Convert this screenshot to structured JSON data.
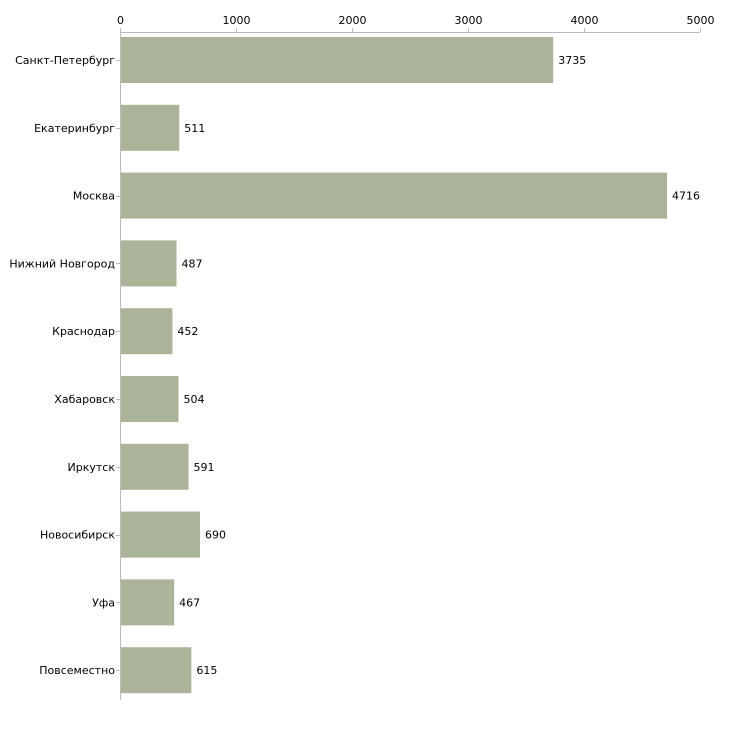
{
  "chart_data": {
    "type": "bar",
    "orientation": "horizontal",
    "title": "",
    "xlabel": "",
    "ylabel": "",
    "xlim": [
      0,
      5000
    ],
    "ticks": [
      0,
      1000,
      2000,
      3000,
      4000,
      5000
    ],
    "tick_labels": [
      "0",
      "1000",
      "2000",
      "3000",
      "4000",
      "5000"
    ],
    "axis_position": "top",
    "grid": false,
    "legend": "none",
    "categories": [
      "Санкт-Петербург",
      "Екатеринбург",
      "Москва",
      "Нижний Новгород",
      "Краснодар",
      "Хабаровск",
      "Иркутск",
      "Новосибирск",
      "Уфа",
      "Повсеместно"
    ],
    "values": [
      3735,
      511,
      4716,
      487,
      452,
      504,
      591,
      690,
      467,
      615
    ],
    "value_labels": [
      "3735",
      "511",
      "4716",
      "487",
      "452",
      "504",
      "591",
      "690",
      "467",
      "615"
    ],
    "bar_color": "#abb398",
    "axis_color": "#bbbbbb"
  }
}
